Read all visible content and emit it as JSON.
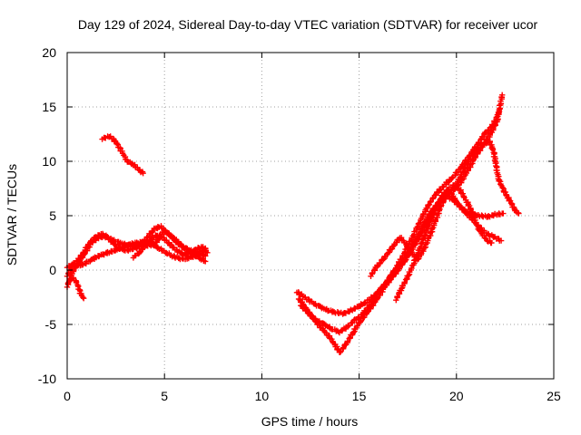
{
  "chart_data": {
    "type": "scatter",
    "title": "Day 129 of 2024, Sidereal Day-to-day VTEC variation (SDTVAR) for receiver ucor",
    "xlabel": "GPS time / hours",
    "ylabel": "SDTVAR / TECUs",
    "xlim": [
      0,
      25
    ],
    "ylim": [
      -10,
      20
    ],
    "x_ticks": [
      "0",
      "5",
      "10",
      "15",
      "20",
      "25"
    ],
    "y_ticks": [
      "-10",
      "-5",
      "0",
      "5",
      "10",
      "15",
      "20"
    ],
    "grid": true,
    "marker": "+",
    "color": "#ff0000",
    "traces": [
      [
        [
          0.0,
          -1.5
        ],
        [
          0.2,
          -0.5
        ],
        [
          0.4,
          0.2
        ],
        [
          0.6,
          0.8
        ],
        [
          0.9,
          1.5
        ],
        [
          1.2,
          2.4
        ],
        [
          1.5,
          2.9
        ],
        [
          1.9,
          3.1
        ],
        [
          2.3,
          2.8
        ],
        [
          2.7,
          2.5
        ],
        [
          3.1,
          2.3
        ],
        [
          3.5,
          2.2
        ],
        [
          3.9,
          2.2
        ],
        [
          4.3,
          2.3
        ],
        [
          4.6,
          2.6
        ],
        [
          4.8,
          3.2
        ],
        [
          5.0,
          3.6
        ],
        [
          5.3,
          3.2
        ],
        [
          5.6,
          2.6
        ],
        [
          5.9,
          2.2
        ],
        [
          6.2,
          1.9
        ],
        [
          6.5,
          1.7
        ],
        [
          6.8,
          1.5
        ],
        [
          7.1,
          1.3
        ]
      ],
      [
        [
          0.0,
          0.3
        ],
        [
          0.3,
          0.5
        ],
        [
          0.6,
          1.0
        ],
        [
          0.9,
          1.8
        ],
        [
          1.2,
          2.6
        ],
        [
          1.5,
          3.1
        ],
        [
          1.8,
          3.3
        ],
        [
          2.1,
          3.0
        ],
        [
          2.4,
          2.4
        ],
        [
          2.7,
          2.0
        ],
        [
          3.0,
          1.8
        ],
        [
          3.3,
          1.9
        ],
        [
          3.6,
          2.1
        ],
        [
          3.9,
          2.6
        ],
        [
          4.2,
          3.2
        ],
        [
          4.5,
          3.8
        ],
        [
          4.8,
          4.0
        ],
        [
          5.1,
          3.5
        ],
        [
          5.4,
          3.0
        ],
        [
          5.7,
          2.6
        ],
        [
          6.0,
          2.0
        ],
        [
          6.3,
          1.6
        ],
        [
          6.6,
          1.3
        ],
        [
          6.9,
          1.0
        ],
        [
          7.1,
          0.8
        ]
      ],
      [
        [
          0.0,
          -0.5
        ],
        [
          0.3,
          0.3
        ],
        [
          0.6,
          0.4
        ],
        [
          0.9,
          0.6
        ],
        [
          1.2,
          0.9
        ],
        [
          1.5,
          1.2
        ],
        [
          1.8,
          1.4
        ],
        [
          2.1,
          1.6
        ],
        [
          2.4,
          1.8
        ],
        [
          2.7,
          2.0
        ],
        [
          3.0,
          2.2
        ],
        [
          3.3,
          2.4
        ],
        [
          3.6,
          2.5
        ],
        [
          3.9,
          2.6
        ],
        [
          4.2,
          2.5
        ],
        [
          4.5,
          2.2
        ],
        [
          4.8,
          1.9
        ],
        [
          5.1,
          1.6
        ],
        [
          5.4,
          1.3
        ],
        [
          5.7,
          1.1
        ],
        [
          6.0,
          1.0
        ],
        [
          6.4,
          1.2
        ],
        [
          6.8,
          1.6
        ],
        [
          7.1,
          2.0
        ]
      ],
      [
        [
          3.4,
          1.2
        ],
        [
          3.7,
          1.6
        ],
        [
          4.0,
          2.2
        ],
        [
          4.3,
          2.8
        ],
        [
          4.6,
          3.2
        ],
        [
          4.9,
          3.0
        ],
        [
          5.2,
          2.5
        ],
        [
          5.5,
          2.0
        ],
        [
          5.8,
          1.6
        ],
        [
          6.1,
          1.4
        ],
        [
          6.4,
          1.6
        ],
        [
          6.7,
          2.0
        ],
        [
          7.0,
          2.1
        ],
        [
          7.2,
          1.6
        ]
      ],
      [
        [
          0.1,
          -1.0
        ],
        [
          0.3,
          -0.7
        ],
        [
          0.5,
          -1.2
        ],
        [
          0.7,
          -2.2
        ],
        [
          0.85,
          -2.6
        ]
      ],
      [
        [
          1.8,
          12.1
        ],
        [
          2.2,
          12.3
        ],
        [
          2.5,
          11.8
        ],
        [
          2.8,
          10.9
        ],
        [
          3.1,
          10.0
        ],
        [
          3.4,
          9.7
        ],
        [
          3.7,
          9.2
        ],
        [
          3.9,
          8.9
        ]
      ],
      [
        [
          11.8,
          -2.0
        ],
        [
          12.2,
          -2.5
        ],
        [
          12.6,
          -3.0
        ],
        [
          13.0,
          -3.4
        ],
        [
          13.4,
          -3.7
        ],
        [
          13.8,
          -3.9
        ],
        [
          14.2,
          -4.0
        ],
        [
          14.6,
          -3.7
        ],
        [
          15.0,
          -3.3
        ],
        [
          15.4,
          -2.9
        ],
        [
          15.8,
          -2.3
        ],
        [
          16.2,
          -1.7
        ],
        [
          16.6,
          -0.9
        ],
        [
          17.0,
          0.0
        ],
        [
          17.4,
          1.0
        ],
        [
          17.8,
          2.4
        ],
        [
          18.2,
          3.8
        ],
        [
          18.6,
          5.1
        ],
        [
          19.0,
          6.0
        ],
        [
          19.4,
          6.8
        ],
        [
          19.8,
          7.3
        ],
        [
          20.2,
          8.0
        ],
        [
          20.6,
          9.2
        ],
        [
          21.0,
          10.5
        ],
        [
          21.4,
          11.6
        ],
        [
          21.8,
          12.6
        ],
        [
          22.1,
          13.8
        ],
        [
          22.35,
          16.1
        ]
      ],
      [
        [
          11.9,
          -2.6
        ],
        [
          12.3,
          -3.6
        ],
        [
          12.7,
          -4.6
        ],
        [
          13.1,
          -5.4
        ],
        [
          13.5,
          -6.2
        ],
        [
          13.8,
          -7.0
        ],
        [
          14.0,
          -7.6
        ],
        [
          14.3,
          -6.9
        ],
        [
          14.7,
          -5.7
        ],
        [
          15.1,
          -4.6
        ],
        [
          15.5,
          -3.7
        ],
        [
          15.9,
          -2.7
        ],
        [
          16.3,
          -1.6
        ],
        [
          16.7,
          -0.4
        ],
        [
          17.1,
          0.8
        ],
        [
          17.5,
          2.2
        ],
        [
          17.9,
          3.6
        ],
        [
          18.3,
          5.1
        ],
        [
          18.7,
          6.4
        ],
        [
          19.1,
          7.3
        ],
        [
          19.5,
          8.0
        ],
        [
          19.9,
          8.7
        ],
        [
          20.3,
          9.6
        ],
        [
          20.7,
          10.6
        ],
        [
          21.1,
          11.6
        ],
        [
          21.5,
          12.6
        ],
        [
          21.9,
          13.4
        ],
        [
          22.2,
          14.6
        ]
      ],
      [
        [
          12.0,
          -3.2
        ],
        [
          12.4,
          -4.0
        ],
        [
          12.8,
          -4.6
        ],
        [
          13.2,
          -5.0
        ],
        [
          13.6,
          -5.4
        ],
        [
          14.0,
          -5.7
        ],
        [
          14.4,
          -5.2
        ],
        [
          14.8,
          -4.6
        ],
        [
          15.2,
          -4.0
        ],
        [
          15.6,
          -3.1
        ],
        [
          16.0,
          -2.0
        ],
        [
          16.4,
          -1.1
        ],
        [
          16.8,
          -0.1
        ],
        [
          17.2,
          0.7
        ],
        [
          17.6,
          1.6
        ],
        [
          18.0,
          2.7
        ],
        [
          18.4,
          4.0
        ],
        [
          18.8,
          5.3
        ],
        [
          19.2,
          6.6
        ],
        [
          19.6,
          7.4
        ],
        [
          20.0,
          6.3
        ],
        [
          20.4,
          5.4
        ],
        [
          20.8,
          4.7
        ],
        [
          21.2,
          3.9
        ],
        [
          21.6,
          3.3
        ],
        [
          22.0,
          3.0
        ],
        [
          22.3,
          2.7
        ]
      ],
      [
        [
          15.6,
          -0.5
        ],
        [
          15.9,
          0.3
        ],
        [
          16.2,
          0.9
        ],
        [
          16.5,
          1.6
        ],
        [
          16.8,
          2.3
        ],
        [
          17.1,
          3.0
        ],
        [
          17.4,
          2.4
        ],
        [
          17.7,
          1.6
        ],
        [
          18.0,
          1.0
        ],
        [
          18.3,
          1.8
        ],
        [
          18.6,
          3.0
        ],
        [
          18.9,
          4.4
        ],
        [
          19.2,
          5.9
        ],
        [
          19.5,
          6.8
        ],
        [
          19.8,
          6.5
        ],
        [
          20.1,
          6.0
        ],
        [
          20.4,
          5.5
        ],
        [
          20.8,
          5.1
        ],
        [
          21.2,
          5.0
        ],
        [
          21.6,
          4.9
        ],
        [
          22.0,
          5.1
        ],
        [
          22.4,
          5.2
        ]
      ],
      [
        [
          16.9,
          -2.7
        ],
        [
          17.2,
          -1.6
        ],
        [
          17.5,
          -0.6
        ],
        [
          17.8,
          0.6
        ],
        [
          18.1,
          1.9
        ],
        [
          18.4,
          3.3
        ],
        [
          18.7,
          4.7
        ],
        [
          19.0,
          5.9
        ],
        [
          19.3,
          6.9
        ],
        [
          19.6,
          7.5
        ],
        [
          19.9,
          7.8
        ],
        [
          20.2,
          7.3
        ],
        [
          20.5,
          6.4
        ],
        [
          20.8,
          5.4
        ],
        [
          21.0,
          4.4
        ],
        [
          21.2,
          3.6
        ],
        [
          21.4,
          3.1
        ],
        [
          21.6,
          2.7
        ],
        [
          21.8,
          2.5
        ]
      ],
      [
        [
          19.9,
          7.5
        ],
        [
          20.2,
          8.6
        ],
        [
          20.5,
          9.6
        ],
        [
          20.8,
          10.4
        ],
        [
          21.1,
          11.1
        ],
        [
          21.4,
          11.6
        ],
        [
          21.7,
          11.8
        ],
        [
          21.9,
          11.0
        ],
        [
          22.0,
          10.0
        ],
        [
          22.1,
          9.0
        ],
        [
          22.2,
          8.2
        ],
        [
          22.4,
          7.4
        ],
        [
          22.6,
          6.8
        ],
        [
          22.8,
          6.2
        ],
        [
          23.0,
          5.5
        ],
        [
          23.2,
          5.2
        ]
      ]
    ]
  }
}
